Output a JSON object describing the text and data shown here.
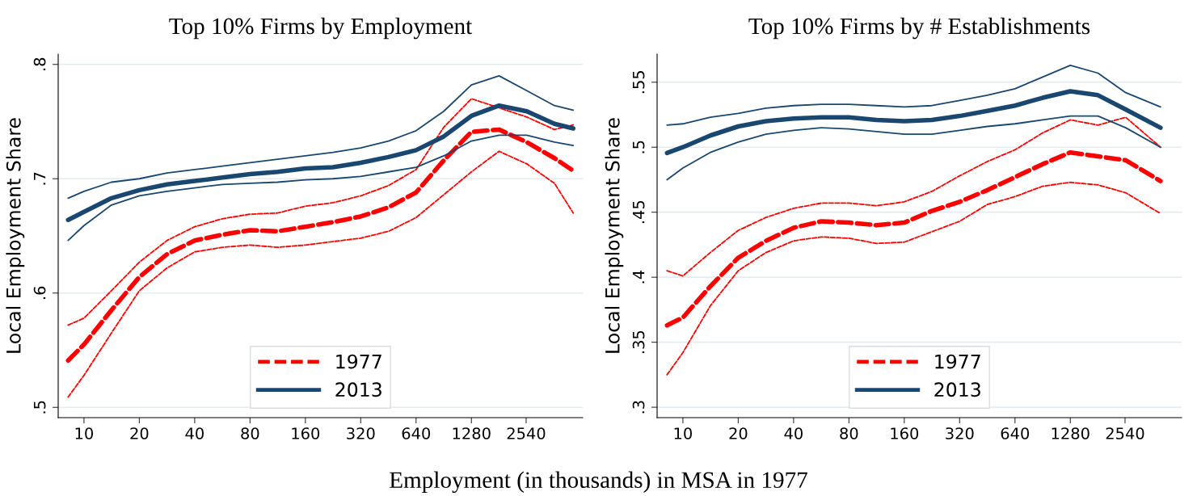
{
  "chart_data": [
    {
      "type": "line",
      "title": "Top 10% Firms by Employment",
      "ylabel": "Local Employment Share",
      "xlabel": "Employment (in thousands) in MSA in 1977",
      "log": "x",
      "x": [
        8.2,
        10,
        14.1,
        20,
        28.3,
        40,
        56.6,
        80,
        113,
        160,
        226,
        320,
        453,
        640,
        905,
        1280,
        1810,
        2560,
        3620,
        4580
      ],
      "series": [
        {
          "name": "1977",
          "color": "#ff0000",
          "line_style": "dashed",
          "values": [
            0.541,
            0.555,
            0.585,
            0.614,
            0.634,
            0.646,
            0.651,
            0.655,
            0.654,
            0.658,
            0.662,
            0.667,
            0.675,
            0.688,
            0.716,
            0.741,
            0.743,
            0.732,
            0.718,
            0.707
          ]
        },
        {
          "color": "#ff0000",
          "line_style": "dashed",
          "values": [
            0.572,
            0.578,
            0.602,
            0.627,
            0.646,
            0.658,
            0.665,
            0.669,
            0.67,
            0.676,
            0.679,
            0.685,
            0.694,
            0.708,
            0.745,
            0.77,
            0.762,
            0.754,
            0.743,
            0.747
          ]
        },
        {
          "color": "#ff0000",
          "line_style": "dashed",
          "values": [
            0.509,
            0.528,
            0.565,
            0.602,
            0.622,
            0.636,
            0.64,
            0.642,
            0.64,
            0.642,
            0.645,
            0.648,
            0.654,
            0.666,
            0.686,
            0.706,
            0.724,
            0.713,
            0.696,
            0.67
          ]
        },
        {
          "name": "2013",
          "color": "#1a476f",
          "line_style": "solid",
          "values": [
            0.664,
            0.671,
            0.683,
            0.69,
            0.695,
            0.698,
            0.701,
            0.704,
            0.706,
            0.709,
            0.71,
            0.714,
            0.719,
            0.725,
            0.737,
            0.755,
            0.764,
            0.759,
            0.748,
            0.744
          ]
        },
        {
          "color": "#1a476f",
          "line_style": "solid",
          "values": [
            0.683,
            0.689,
            0.697,
            0.7,
            0.705,
            0.708,
            0.711,
            0.714,
            0.717,
            0.72,
            0.723,
            0.727,
            0.733,
            0.742,
            0.759,
            0.782,
            0.79,
            0.777,
            0.764,
            0.76
          ]
        },
        {
          "color": "#1a476f",
          "line_style": "solid",
          "values": [
            0.646,
            0.659,
            0.677,
            0.685,
            0.689,
            0.692,
            0.695,
            0.696,
            0.697,
            0.699,
            0.7,
            0.702,
            0.706,
            0.71,
            0.72,
            0.733,
            0.738,
            0.738,
            0.732,
            0.729
          ]
        }
      ],
      "xlim": [
        7.24,
        5160
      ],
      "xticks": [
        10,
        20,
        40,
        80,
        160,
        320,
        640,
        1280,
        2540
      ],
      "ylim": [
        0.491,
        0.809
      ],
      "yticks": [
        {
          "value": 0.5,
          "label": ".5"
        },
        {
          "value": 0.6,
          "label": ".6"
        },
        {
          "value": 0.7,
          "label": ".7"
        },
        {
          "value": 0.8,
          "label": ".8"
        }
      ],
      "grid": "y",
      "legend": "bottom"
    },
    {
      "type": "line",
      "title": "Top 10% Firms by # Establishments",
      "ylabel": "Local Employment Share",
      "log": "x",
      "x": [
        8.2,
        10,
        14.1,
        20,
        28.3,
        40,
        56.6,
        80,
        113,
        160,
        226,
        320,
        453,
        640,
        905,
        1280,
        1810,
        2560,
        3960
      ],
      "series": [
        {
          "name": "1977",
          "color": "#ff0000",
          "line_style": "dashed",
          "values": [
            0.363,
            0.369,
            0.393,
            0.415,
            0.428,
            0.438,
            0.443,
            0.442,
            0.44,
            0.442,
            0.451,
            0.458,
            0.467,
            0.477,
            0.487,
            0.496,
            0.493,
            0.49,
            0.474
          ]
        },
        {
          "color": "#ff0000",
          "line_style": "dashed",
          "values": [
            0.405,
            0.401,
            0.419,
            0.436,
            0.446,
            0.453,
            0.457,
            0.457,
            0.455,
            0.458,
            0.466,
            0.478,
            0.489,
            0.498,
            0.511,
            0.521,
            0.517,
            0.523,
            0.5
          ]
        },
        {
          "color": "#ff0000",
          "line_style": "dashed",
          "values": [
            0.325,
            0.342,
            0.378,
            0.405,
            0.419,
            0.428,
            0.431,
            0.43,
            0.426,
            0.427,
            0.435,
            0.443,
            0.456,
            0.462,
            0.47,
            0.473,
            0.471,
            0.465,
            0.449
          ]
        },
        {
          "name": "2013",
          "color": "#1a476f",
          "line_style": "solid",
          "values": [
            0.4956,
            0.5,
            0.509,
            0.516,
            0.52,
            0.522,
            0.523,
            0.523,
            0.521,
            0.52,
            0.521,
            0.524,
            0.528,
            0.532,
            0.538,
            0.543,
            0.54,
            0.529,
            0.515
          ]
        },
        {
          "color": "#1a476f",
          "line_style": "solid",
          "values": [
            0.517,
            0.518,
            0.523,
            0.526,
            0.53,
            0.532,
            0.533,
            0.533,
            0.532,
            0.531,
            0.532,
            0.536,
            0.54,
            0.545,
            0.554,
            0.563,
            0.557,
            0.542,
            0.531
          ]
        },
        {
          "color": "#1a476f",
          "line_style": "solid",
          "values": [
            0.475,
            0.484,
            0.496,
            0.504,
            0.51,
            0.513,
            0.515,
            0.514,
            0.512,
            0.51,
            0.51,
            0.513,
            0.516,
            0.518,
            0.521,
            0.524,
            0.524,
            0.515,
            0.5
          ]
        }
      ],
      "xlim": [
        7.24,
        5160
      ],
      "xticks": [
        10,
        20,
        40,
        80,
        160,
        320,
        640,
        1280,
        2540
      ],
      "ylim": [
        0.292,
        0.5716
      ],
      "yticks": [
        {
          "value": 0.3,
          "label": ".3"
        },
        {
          "value": 0.35,
          "label": ".35"
        },
        {
          "value": 0.4,
          "label": ".4"
        },
        {
          "value": 0.45,
          "label": ".45"
        },
        {
          "value": 0.5,
          "label": ".5"
        },
        {
          "value": 0.55,
          "label": ".55"
        }
      ],
      "grid": "y",
      "legend": "bottom"
    }
  ]
}
